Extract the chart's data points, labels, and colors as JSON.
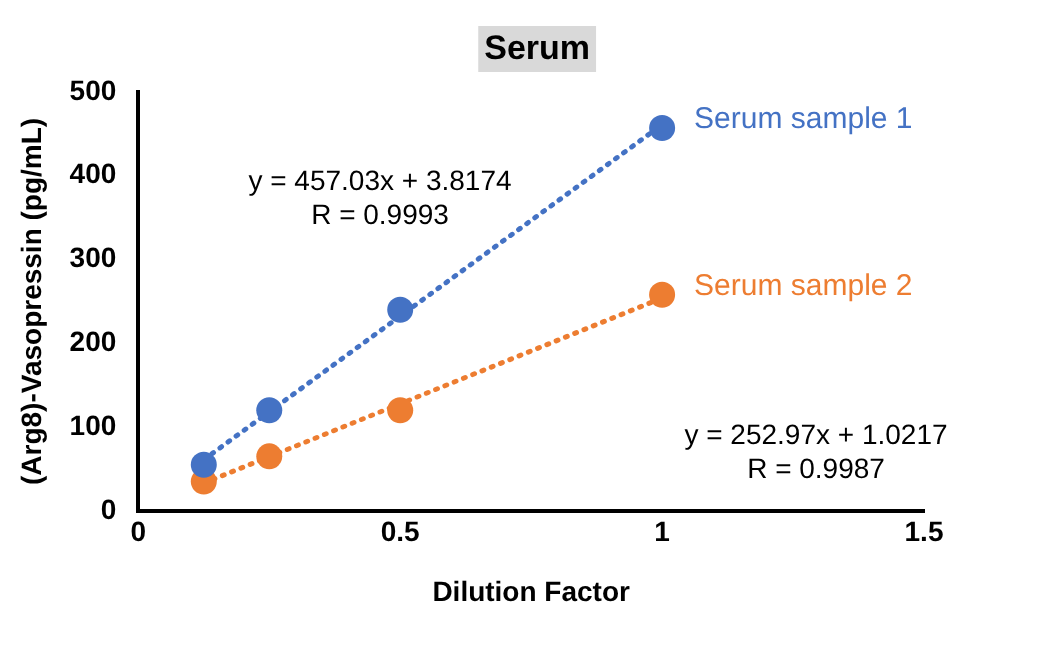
{
  "chart_data": {
    "type": "scatter",
    "title": "Serum",
    "xlabel": "Dilution Factor",
    "ylabel": "(Arg8)-Vasopressin (pg/mL)",
    "xlim": [
      0,
      1.5
    ],
    "xticks": [
      0,
      0.5,
      1,
      1.5
    ],
    "ylim": [
      0,
      500
    ],
    "yticks": [
      0,
      100,
      200,
      300,
      400,
      500
    ],
    "grid": false,
    "legend": false,
    "series": [
      {
        "name": "Serum sample 1",
        "type": "scatter",
        "marker": "circle",
        "color": "#4472c4",
        "x": [
          0.125,
          0.25,
          0.5,
          1
        ],
        "values": [
          55,
          120,
          240,
          457
        ]
      },
      {
        "name": "Serum sample 2",
        "type": "scatter",
        "marker": "circle",
        "color": "#ed7d31",
        "x": [
          0.125,
          0.25,
          0.5,
          1
        ],
        "values": [
          35,
          65,
          120,
          258
        ]
      },
      {
        "type": "line",
        "marker": "none",
        "line_style": "dotted",
        "color": "#4472c4",
        "x": [
          0.125,
          1
        ],
        "values": [
          61,
          461
        ]
      },
      {
        "type": "line",
        "marker": "none",
        "line_style": "dotted",
        "color": "#ed7d31",
        "x": [
          0.125,
          1
        ],
        "values": [
          33,
          254
        ]
      }
    ],
    "annotations": [
      "y = 457.03x + 3.8174\nR = 0.9993",
      "y = 252.97x + 1.0217\nR = 0.9987"
    ]
  }
}
